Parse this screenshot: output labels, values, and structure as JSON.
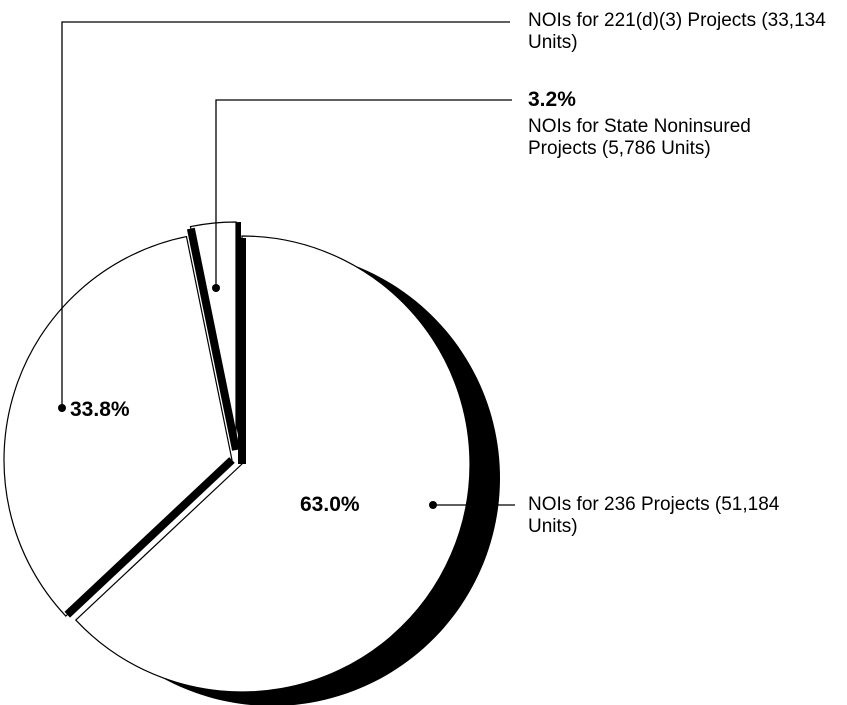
{
  "chart_data": {
    "type": "pie",
    "categories": [
      "NOIs for 236 Projects (51,184 Units)",
      "NOIs for 221(d)(3) Projects (33,134 Units)",
      "NOIs for State Noninsured Projects (5,786 Units)"
    ],
    "values": [
      63.0,
      33.8,
      3.2
    ],
    "value_labels": [
      "63.0%",
      "33.8%",
      "3.2%"
    ],
    "colors": [
      "#ffffff",
      "#ffffff",
      "#ffffff"
    ]
  }
}
